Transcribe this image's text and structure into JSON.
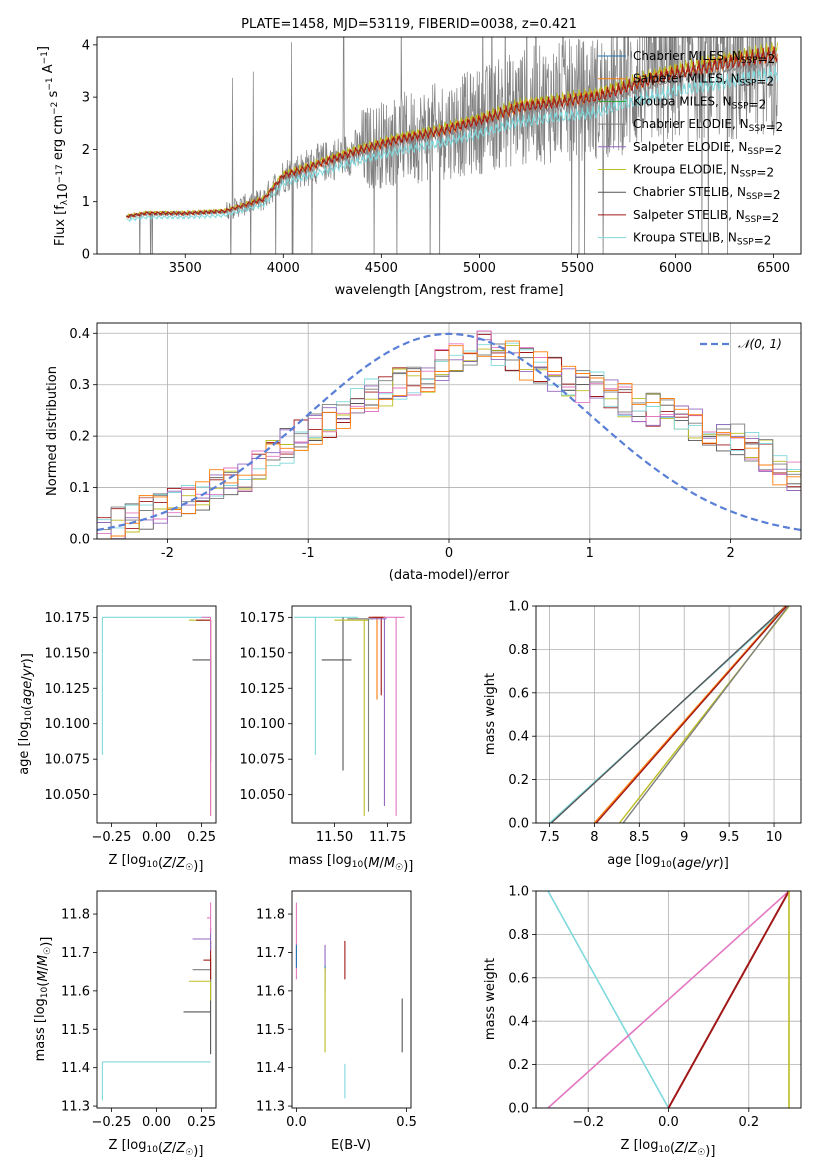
{
  "title": "PLATE=1458, MJD=53119, FIBERID=0038, z=0.421",
  "colors": {
    "chabrier_miles": "#1f77b4",
    "salpeter_miles": "#ff7f0e",
    "kroupa_miles": "#2ca02c",
    "chabrier_elodie": "#7f7f7f",
    "salpeter_elodie": "#9467bd",
    "kroupa_elodie": "#bcbd22",
    "chabrier_stelib": "#555555",
    "salpeter_stelib": "#a01818",
    "kroupa_stelib": "#7fd8dc",
    "pink": "#e377c2",
    "normal_curve": "#5a7fd6",
    "data": "#808080"
  },
  "chart_data": [
    {
      "id": "spectrum",
      "type": "line",
      "title": "PLATE=1458, MJD=53119, FIBERID=0038, z=0.421",
      "xlabel": "wavelength [Angstrom, rest frame]",
      "ylabel_parts": {
        "a": "Flux [f",
        "sub": "λ",
        "b": "10",
        "sup1": "−17",
        "c": " erg cm",
        "sup2": "−2",
        "d": " s",
        "sup3": "−1",
        "e": " A",
        "sup4": "−1",
        "f": "]"
      },
      "xlim": [
        3050,
        6640
      ],
      "ylim": [
        0,
        4.15
      ],
      "xticks": [
        3500,
        4000,
        4500,
        5000,
        5500,
        6000,
        6500
      ],
      "yticks": [
        0,
        1,
        2,
        3,
        4
      ],
      "legend_position": "top-right",
      "legend": [
        {
          "label": "Chabrier MILES, N",
          "sub": "SSP",
          "suffix": "=2",
          "color_key": "chabrier_miles"
        },
        {
          "label": "Salpeter MILES, N",
          "sub": "SSP",
          "suffix": "=2",
          "color_key": "salpeter_miles"
        },
        {
          "label": "Kroupa MILES, N",
          "sub": "SSP",
          "suffix": "=2",
          "color_key": "kroupa_miles"
        },
        {
          "label": "Chabrier ELODIE, N",
          "sub": "SSP",
          "suffix": "=2",
          "color_key": "chabrier_elodie"
        },
        {
          "label": "Salpeter ELODIE, N",
          "sub": "SSP",
          "suffix": "=2",
          "color_key": "salpeter_elodie"
        },
        {
          "label": "Kroupa ELODIE, N",
          "sub": "SSP",
          "suffix": "=2",
          "color_key": "kroupa_elodie"
        },
        {
          "label": "Chabrier STELIB, N",
          "sub": "SSP",
          "suffix": "=2",
          "color_key": "chabrier_stelib"
        },
        {
          "label": "Salpeter STELIB, N",
          "sub": "SSP",
          "suffix": "=2",
          "color_key": "salpeter_stelib"
        },
        {
          "label": "Kroupa STELIB, N",
          "sub": "SSP",
          "suffix": "=2",
          "color_key": "kroupa_stelib"
        }
      ],
      "model_shape": {
        "x": [
          3200,
          3300,
          3500,
          3700,
          3900,
          4000,
          4200,
          4400,
          4600,
          4800,
          5000,
          5200,
          5400,
          5600,
          5800,
          6000,
          6200,
          6400,
          6500
        ],
        "y": [
          0.72,
          0.78,
          0.78,
          0.82,
          1.05,
          1.5,
          1.75,
          2.0,
          2.2,
          2.35,
          2.55,
          2.8,
          2.9,
          3.0,
          3.25,
          3.45,
          3.6,
          3.75,
          3.8
        ]
      }
    },
    {
      "id": "residuals",
      "type": "step-histogram",
      "xlabel": "(data-model)/error",
      "ylabel": "Normed distribution",
      "xlim": [
        -2.5,
        2.5
      ],
      "ylim": [
        0,
        0.42
      ],
      "xticks": [
        -2,
        -1,
        0,
        1,
        2
      ],
      "yticks": [
        0.0,
        0.1,
        0.2,
        0.3,
        0.4
      ],
      "legend_position": "top-right",
      "legend_label": "𝒩(0, 1)",
      "bin_width": 0.1,
      "base_shape": [
        0.02,
        0.03,
        0.04,
        0.05,
        0.06,
        0.07,
        0.08,
        0.09,
        0.1,
        0.11,
        0.12,
        0.14,
        0.16,
        0.18,
        0.2,
        0.21,
        0.23,
        0.25,
        0.27,
        0.28,
        0.29,
        0.3,
        0.31,
        0.32,
        0.34,
        0.35,
        0.36,
        0.37,
        0.36,
        0.35,
        0.34,
        0.33,
        0.32,
        0.31,
        0.3,
        0.29,
        0.28,
        0.27,
        0.26,
        0.25,
        0.24,
        0.23,
        0.22,
        0.21,
        0.2,
        0.19,
        0.18,
        0.16,
        0.14,
        0.12,
        0.11
      ]
    },
    {
      "id": "age_vs_z",
      "type": "errorbar",
      "xlabel": "Z [log10(Z/Z☉)]",
      "ylabel": "age  [log10(age/yr)]",
      "xlim": [
        -0.33,
        0.33
      ],
      "ylim": [
        10.03,
        10.183
      ],
      "xticks": [
        -0.25,
        0.0,
        0.25
      ],
      "xticklabels": [
        "−0.25",
        "0.00",
        "0.25"
      ],
      "yticks": [
        10.05,
        10.075,
        10.1,
        10.125,
        10.15,
        10.175
      ],
      "yticklabels": [
        "10.050",
        "10.075",
        "10.100",
        "10.125",
        "10.150",
        "10.175"
      ],
      "points": [
        {
          "color_key": "kroupa_stelib",
          "x": -0.3,
          "y": 10.175,
          "xerr": [
            0,
            0.6
          ],
          "yerr": [
            0.097,
            0
          ]
        },
        {
          "color_key": "kroupa_elodie",
          "x": 0.3,
          "y": 10.173,
          "xerr": [
            0.12,
            0
          ],
          "yerr": [
            0.138,
            0
          ]
        },
        {
          "color_key": "salpeter_stelib",
          "x": 0.3,
          "y": 10.173,
          "xerr": [
            0.08,
            0
          ],
          "yerr": [
            0.1,
            0
          ]
        },
        {
          "color_key": "chabrier_stelib",
          "x": 0.3,
          "y": 10.145,
          "xerr": [
            0.1,
            0
          ],
          "yerr": [
            0.068,
            0
          ]
        },
        {
          "color_key": "pink",
          "x": 0.3,
          "y": 10.175,
          "xerr": [
            0.05,
            0
          ],
          "yerr": [
            0.14,
            0
          ]
        }
      ]
    },
    {
      "id": "age_vs_mass",
      "type": "errorbar",
      "xlabel": "mass [log10(M/M☉)]",
      "xlim": [
        11.3,
        11.86
      ],
      "ylim": [
        10.03,
        10.183
      ],
      "xticks": [
        11.5,
        11.75
      ],
      "xticklabels": [
        "11.50",
        "11.75"
      ],
      "yticks": [
        10.05,
        10.075,
        10.1,
        10.125,
        10.15,
        10.175
      ],
      "yticklabels": [
        "10.050",
        "10.075",
        "10.100",
        "10.125",
        "10.150",
        "10.175"
      ],
      "points": [
        {
          "color_key": "kroupa_stelib",
          "x": 11.41,
          "y": 10.175,
          "xerr": [
            0.1,
            0.2
          ],
          "yerr": [
            0.097,
            0
          ]
        },
        {
          "color_key": "chabrier_stelib",
          "x": 11.54,
          "y": 10.145,
          "xerr": [
            0.1,
            0.04
          ],
          "yerr": [
            0.078,
            0.03
          ]
        },
        {
          "color_key": "kroupa_elodie",
          "x": 11.64,
          "y": 10.173,
          "xerr": [
            0.14,
            0.02
          ],
          "yerr": [
            0.138,
            0
          ]
        },
        {
          "color_key": "chabrier_elodie",
          "x": 11.66,
          "y": 10.174,
          "xerr": [
            0.1,
            0.02
          ],
          "yerr": [
            0.136,
            0
          ]
        },
        {
          "color_key": "salpeter_miles",
          "x": 11.7,
          "y": 10.175,
          "xerr": [
            0.02,
            0.04
          ],
          "yerr": [
            0.058,
            0
          ]
        },
        {
          "color_key": "salpeter_stelib",
          "x": 11.72,
          "y": 10.175,
          "xerr": [
            0.06,
            0.02
          ],
          "yerr": [
            0.055,
            0
          ]
        },
        {
          "color_key": "salpeter_elodie",
          "x": 11.735,
          "y": 10.174,
          "xerr": [
            0.06,
            0.01
          ],
          "yerr": [
            0.132,
            0
          ]
        },
        {
          "color_key": "pink",
          "x": 11.79,
          "y": 10.175,
          "xerr": [
            0.06,
            0.04
          ],
          "yerr": [
            0.14,
            0
          ]
        }
      ]
    },
    {
      "id": "massweight_vs_age",
      "type": "line",
      "xlabel": "age  [log10(age/yr)]",
      "ylabel": "mass weight",
      "xlim": [
        7.35,
        10.3
      ],
      "ylim": [
        0,
        1.0
      ],
      "xticks": [
        7.5,
        8.0,
        8.5,
        9.0,
        9.5,
        10.0
      ],
      "yticks": [
        0,
        0.2,
        0.4,
        0.6,
        0.8,
        1.0
      ],
      "series": [
        {
          "color_key": "kroupa_stelib",
          "x": [
            7.5,
            10.15
          ],
          "y": [
            0,
            1
          ]
        },
        {
          "color_key": "chabrier_stelib",
          "x": [
            7.52,
            10.13
          ],
          "y": [
            0,
            1
          ]
        },
        {
          "color_key": "salpeter_miles",
          "x": [
            8.0,
            10.13
          ],
          "y": [
            0,
            1
          ]
        },
        {
          "color_key": "salpeter_stelib",
          "x": [
            8.02,
            10.14
          ],
          "y": [
            0,
            1
          ]
        },
        {
          "color_key": "kroupa_elodie",
          "x": [
            8.28,
            10.17
          ],
          "y": [
            0,
            1
          ]
        },
        {
          "color_key": "chabrier_elodie",
          "x": [
            8.32,
            10.16
          ],
          "y": [
            0,
            1
          ]
        }
      ]
    },
    {
      "id": "mass_vs_z",
      "type": "errorbar",
      "xlabel": "Z [log10(Z/Z☉)]",
      "ylabel": "mass [log10(M/M☉)]",
      "xlim": [
        -0.33,
        0.33
      ],
      "ylim": [
        11.295,
        11.86
      ],
      "xticks": [
        -0.25,
        0.0,
        0.25
      ],
      "xticklabels": [
        "−0.25",
        "0.00",
        "0.25"
      ],
      "yticks": [
        11.3,
        11.4,
        11.5,
        11.6,
        11.7,
        11.8
      ],
      "yticklabels": [
        "11.3",
        "11.4",
        "11.5",
        "11.6",
        "11.7",
        "11.8"
      ],
      "points": [
        {
          "color_key": "kroupa_stelib",
          "x": -0.3,
          "y": 11.415,
          "xerr": [
            0,
            0.6
          ],
          "yerr": [
            0.1,
            0
          ]
        },
        {
          "color_key": "chabrier_stelib",
          "x": 0.3,
          "y": 11.545,
          "xerr": [
            0.15,
            0
          ],
          "yerr": [
            0.11,
            0.09
          ]
        },
        {
          "color_key": "kroupa_elodie",
          "x": 0.3,
          "y": 11.625,
          "xerr": [
            0.12,
            0
          ],
          "yerr": [
            0.05,
            0.06
          ]
        },
        {
          "color_key": "chabrier_elodie",
          "x": 0.3,
          "y": 11.655,
          "xerr": [
            0.1,
            0
          ],
          "yerr": [
            0.03,
            0.03
          ]
        },
        {
          "color_key": "salpeter_stelib",
          "x": 0.3,
          "y": 11.68,
          "xerr": [
            0.04,
            0
          ],
          "yerr": [
            0.05,
            0.05
          ]
        },
        {
          "color_key": "salpeter_elodie",
          "x": 0.3,
          "y": 11.735,
          "xerr": [
            0.1,
            0
          ],
          "yerr": [
            0.03,
            0.03
          ]
        },
        {
          "color_key": "pink",
          "x": 0.3,
          "y": 11.79,
          "xerr": [
            0.02,
            0
          ],
          "yerr": [
            0.04,
            0.04
          ]
        }
      ]
    },
    {
      "id": "mass_vs_ebv",
      "type": "errorbar",
      "xlabel": "E(B-V)",
      "xlim": [
        -0.02,
        0.52
      ],
      "ylim": [
        11.295,
        11.86
      ],
      "xticks": [
        0.0,
        0.5
      ],
      "xticklabels": [
        "0.0",
        "0.5"
      ],
      "yticks": [
        11.3,
        11.4,
        11.5,
        11.6,
        11.7,
        11.8
      ],
      "yticklabels": [
        "11.3",
        "11.4",
        "11.5",
        "11.6",
        "11.7",
        "11.8"
      ],
      "points": [
        {
          "color_key": "pink",
          "x": 0.0,
          "y": 11.73,
          "yerr": [
            0.1,
            0.1
          ]
        },
        {
          "color_key": "chabrier_miles",
          "x": 0.0,
          "y": 11.69,
          "yerr": [
            0.03,
            0.03
          ]
        },
        {
          "color_key": "salpeter_elodie",
          "x": 0.13,
          "y": 11.65,
          "yerr": [
            0.05,
            0.07
          ]
        },
        {
          "color_key": "chabrier_miles",
          "x": 0.13,
          "y": 11.655,
          "yerr": [
            0.01,
            0.01
          ]
        },
        {
          "color_key": "kroupa_elodie",
          "x": 0.13,
          "y": 11.56,
          "yerr": [
            0.12,
            0.1
          ]
        },
        {
          "color_key": "salpeter_stelib",
          "x": 0.22,
          "y": 11.68,
          "yerr": [
            0.05,
            0.05
          ]
        },
        {
          "color_key": "kroupa_stelib",
          "x": 0.22,
          "y": 11.37,
          "yerr": [
            0.05,
            0.04
          ]
        },
        {
          "color_key": "chabrier_stelib",
          "x": 0.48,
          "y": 11.51,
          "yerr": [
            0.07,
            0.07
          ]
        }
      ]
    },
    {
      "id": "massweight_vs_z",
      "type": "line",
      "xlabel": "Z [log10(Z/Z☉)]",
      "ylabel": "mass weight",
      "xlim": [
        -0.33,
        0.33
      ],
      "ylim": [
        0,
        1.0
      ],
      "xticks": [
        -0.2,
        0.0,
        0.2
      ],
      "xticklabels": [
        "−0.2",
        "0.0",
        "0.2"
      ],
      "yticks": [
        0,
        0.2,
        0.4,
        0.6,
        0.8,
        1.0
      ],
      "series": [
        {
          "color_key": "kroupa_stelib",
          "x": [
            -0.3,
            0.0
          ],
          "y": [
            1,
            0
          ]
        },
        {
          "color_key": "pink",
          "x": [
            -0.3,
            0.3
          ],
          "y": [
            0,
            1
          ]
        },
        {
          "color_key": "salpeter_stelib",
          "x": [
            0.0,
            0.3
          ],
          "y": [
            0,
            1
          ]
        },
        {
          "color_key": "kroupa_elodie",
          "x": [
            0.3,
            0.3
          ],
          "y": [
            0,
            1
          ]
        }
      ]
    }
  ]
}
